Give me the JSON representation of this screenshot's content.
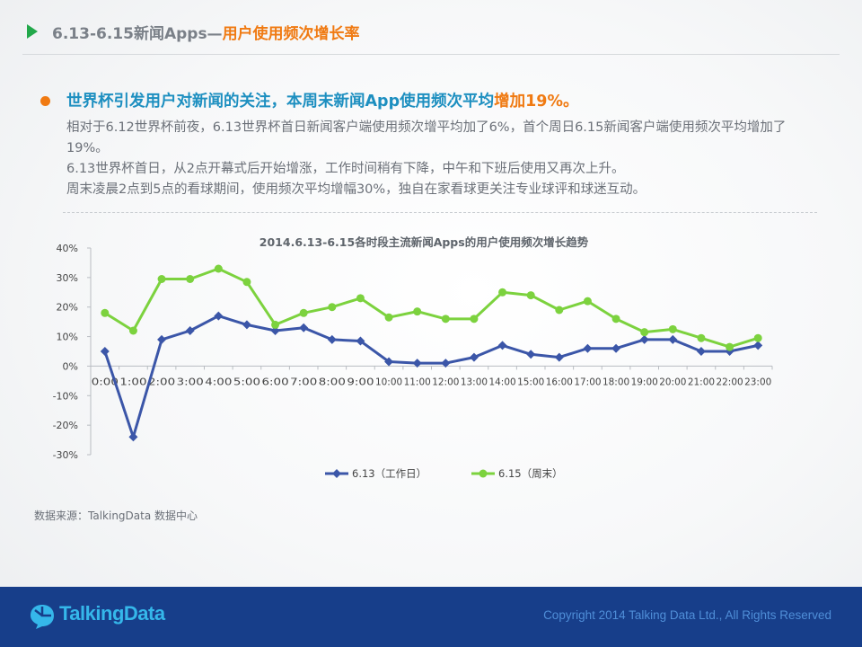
{
  "header": {
    "title_main": "6.13-6.15新闻Apps—",
    "title_accent": "用户使用频次增长率"
  },
  "headline": {
    "main": "世界杯引发用户对新闻的关注，本周末新闻App使用频次平均",
    "accent": "增加19%",
    "end": "。"
  },
  "body": [
    "相对于6.12世界杯前夜，6.13世界杯首日新闻客户端使用频次增平均加了6%，首个周日6.15新闻客户端使用频次平均增加了19%。",
    "6.13世界杯首日，从2点开幕式后开始增涨，工作时间稍有下降，中午和下班后使用又再次上升。",
    "周末凌晨2点到5点的看球期间，使用频次平均增幅30%，独自在家看球更关注专业球评和球迷互动。"
  ],
  "source": "数据来源：TalkingData 数据中心",
  "footer": {
    "logo_text": "TalkingData",
    "copyright": "Copyright 2014 Talking Data Ltd., All Rights Reserved"
  },
  "colors": {
    "accent_orange": "#f07a12",
    "headline_blue": "#1d8fc0",
    "series_blue": "#3b56a8",
    "series_green": "#7cd23e",
    "footer_bg": "#173e8a"
  },
  "chart_data": {
    "type": "line",
    "title": "2014.6.13-6.15各时段主流新闻Apps的用户使用频次增长趋势",
    "categories": [
      "0:00",
      "1:00",
      "2:00",
      "3:00",
      "4:00",
      "5:00",
      "6:00",
      "7:00",
      "8:00",
      "9:00",
      "10:00",
      "11:00",
      "12:00",
      "13:00",
      "14:00",
      "15:00",
      "16:00",
      "17:00",
      "18:00",
      "19:00",
      "20:00",
      "21:00",
      "22:00",
      "23:00"
    ],
    "y_ticks": [
      "40%",
      "30%",
      "20%",
      "10%",
      "0%",
      "-10%",
      "-20%",
      "-30%"
    ],
    "ylim": [
      -30,
      40
    ],
    "legend_position": "bottom",
    "series": [
      {
        "name": "6.13（工作日）",
        "marker": "diamond",
        "values": [
          5,
          -24,
          9,
          12,
          17,
          14,
          12,
          13,
          9,
          8.5,
          1.5,
          1,
          1,
          3,
          7,
          4,
          3,
          6,
          6,
          9,
          9,
          5,
          5,
          7
        ]
      },
      {
        "name": "6.15（周末）",
        "marker": "circle",
        "values": [
          18,
          12,
          29.5,
          29.5,
          33,
          28.5,
          14,
          18,
          20,
          23,
          16.5,
          18.5,
          16,
          16,
          25,
          24,
          19,
          22,
          16,
          11.5,
          12.5,
          9.5,
          6.5,
          9.5
        ]
      }
    ]
  }
}
